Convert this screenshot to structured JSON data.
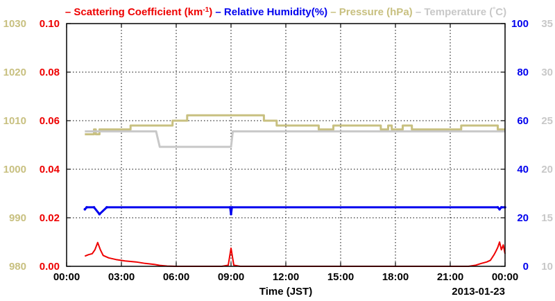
{
  "chart_data": {
    "type": "line",
    "legend": [
      {
        "dash": "–",
        "label": "Scattering Coefficient (km",
        "sup": "-1",
        "close": ")",
        "color": "#ee0000"
      },
      {
        "dash": "–",
        "label": "Relative Humidity(%)",
        "sup": "",
        "close": "",
        "color": "#0000ee"
      },
      {
        "dash": "–",
        "label": "Pressure (hPa)",
        "sup": "",
        "close": "",
        "color": "#c8c080"
      },
      {
        "dash": "–",
        "label": "Temperature (",
        "sup": "°",
        "close": "C)",
        "color": "#c8c8c8"
      }
    ],
    "xlabel": "Time (JST)",
    "date_label": "2013-01-23",
    "x_ticks": [
      "00:00",
      "03:00",
      "06:00",
      "09:00",
      "12:00",
      "15:00",
      "18:00",
      "21:00",
      "00:00"
    ],
    "xlim": [
      0,
      24
    ],
    "axes": {
      "pressure": {
        "ticks": [
          "980",
          "990",
          "1000",
          "1010",
          "1020",
          "1030"
        ],
        "range": [
          980,
          1030
        ],
        "color": "#c8c080"
      },
      "scattering": {
        "ticks": [
          "0.00",
          "0.02",
          "0.04",
          "0.06",
          "0.08",
          "0.10"
        ],
        "range": [
          0,
          0.1
        ],
        "color": "#ee0000"
      },
      "humidity": {
        "ticks": [
          "0",
          "20",
          "40",
          "60",
          "80",
          "100"
        ],
        "range": [
          0,
          100
        ],
        "color": "#0000ee"
      },
      "temperature": {
        "ticks": [
          "10",
          "15",
          "20",
          "25",
          "30",
          "35"
        ],
        "range": [
          10,
          35
        ],
        "color": "#c8c8c8"
      }
    },
    "series": [
      {
        "name": "Pressure (hPa)",
        "axis": "pressure",
        "color": "#c8c080",
        "x": [
          1.0,
          1.5,
          1.5,
          1.6,
          1.6,
          1.8,
          1.8,
          3.5,
          3.5,
          5.8,
          5.8,
          6.6,
          6.6,
          10.8,
          10.8,
          11.5,
          11.5,
          13.8,
          13.8,
          14.6,
          14.6,
          17.2,
          17.2,
          17.6,
          17.6,
          17.8,
          17.8,
          18.4,
          18.4,
          18.9,
          18.9,
          21.6,
          21.6,
          23.6,
          23.6,
          24.0
        ],
        "y": [
          1007.2,
          1007.2,
          1008.2,
          1008.2,
          1007.2,
          1007.2,
          1008.2,
          1008.2,
          1009.0,
          1009.0,
          1010.0,
          1010.0,
          1011.1,
          1011.1,
          1010.0,
          1010.0,
          1009.0,
          1009.0,
          1008.2,
          1008.2,
          1009.0,
          1009.0,
          1008.2,
          1008.2,
          1009.0,
          1009.0,
          1008.2,
          1008.2,
          1009.0,
          1009.0,
          1008.2,
          1008.2,
          1009.0,
          1009.0,
          1008.2,
          1008.2
        ]
      },
      {
        "name": "Temperature (C)",
        "axis": "temperature",
        "color": "#c8c8c8",
        "x": [
          1.0,
          4.9,
          5.1,
          9.0,
          9.1,
          24.0
        ],
        "y": [
          23.9,
          23.9,
          22.3,
          22.3,
          23.9,
          23.9
        ]
      },
      {
        "name": "Relative Humidity(%)",
        "axis": "humidity",
        "color": "#0000ee",
        "x": [
          1.0,
          1.1,
          1.5,
          1.8,
          2.2,
          8.95,
          9.0,
          9.05,
          23.6,
          23.7,
          23.8,
          24.0
        ],
        "y": [
          23.5,
          24.3,
          24.3,
          21.5,
          24.3,
          24.3,
          21.5,
          24.3,
          24.3,
          23.5,
          24.3,
          24.3
        ]
      },
      {
        "name": "Scattering Coefficient (km-1)",
        "axis": "scattering",
        "color": "#ee0000",
        "x": [
          1.0,
          1.2,
          1.4,
          1.55,
          1.7,
          1.85,
          2.0,
          2.3,
          2.7,
          3.2,
          3.8,
          4.3,
          4.8,
          5.1,
          5.5,
          6.0,
          6.5,
          7.0,
          7.5,
          8.0,
          8.5,
          8.85,
          9.0,
          9.15,
          9.5,
          10.0,
          11.0,
          12.0,
          13.0,
          14.0,
          15.0,
          16.0,
          17.0,
          18.0,
          19.0,
          20.0,
          21.0,
          22.0,
          22.4,
          22.7,
          23.0,
          23.2,
          23.4,
          23.5,
          23.6,
          23.7,
          23.8,
          23.9,
          24.0
        ],
        "y": [
          0.0042,
          0.0048,
          0.0052,
          0.0068,
          0.0098,
          0.0068,
          0.0045,
          0.0035,
          0.0028,
          0.0022,
          0.0018,
          0.0012,
          0.0008,
          0.0004,
          0.0001,
          0.0,
          0.0,
          0.0,
          0.0,
          0.0,
          0.0,
          0.0005,
          0.0075,
          0.0005,
          0.0,
          0.0,
          0.0,
          0.0,
          0.0,
          0.0,
          0.0,
          0.0,
          0.0,
          0.0,
          0.0,
          0.0,
          0.0,
          0.0,
          0.0005,
          0.0012,
          0.0018,
          0.0025,
          0.0048,
          0.0062,
          0.0078,
          0.01,
          0.0068,
          0.0088,
          0.0052
        ]
      }
    ],
    "grid": true
  }
}
